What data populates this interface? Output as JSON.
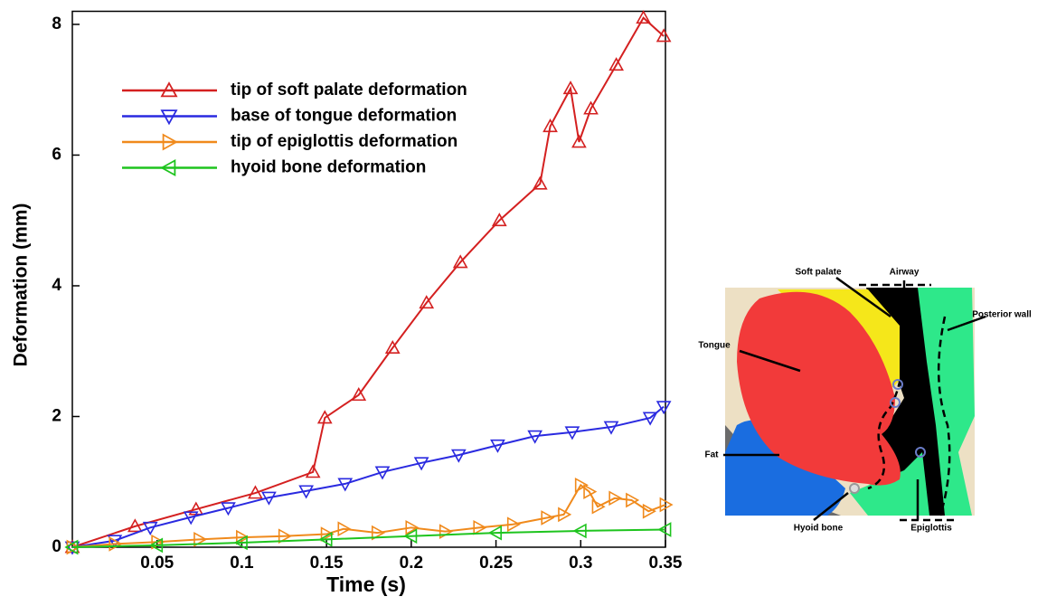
{
  "chart_data": {
    "type": "line",
    "xlabel": "Time (s)",
    "ylabel": "Deformation (mm)",
    "xlim": [
      0,
      0.35
    ],
    "ylim": [
      0,
      8.2
    ],
    "xticks": [
      0.05,
      0.1,
      0.15,
      0.2,
      0.25,
      0.3,
      0.35
    ],
    "yticks": [
      0,
      2,
      4,
      6,
      8
    ],
    "series": [
      {
        "name": "tip of soft palate deformation",
        "color": "#d42020",
        "marker": "up",
        "x": [
          0,
          0.037,
          0.073,
          0.108,
          0.142,
          0.149,
          0.169,
          0.189,
          0.209,
          0.229,
          0.252,
          0.276,
          0.282,
          0.294,
          0.299,
          0.306,
          0.321,
          0.337,
          0.349
        ],
        "values": [
          0,
          0.32,
          0.58,
          0.83,
          1.15,
          1.98,
          2.33,
          3.05,
          3.74,
          4.36,
          5.0,
          5.56,
          6.44,
          7.02,
          6.2,
          6.71,
          7.38,
          8.1,
          7.82
        ]
      },
      {
        "name": "base of tongue deformation",
        "color": "#2a2ae0",
        "marker": "down",
        "x": [
          0,
          0.025,
          0.046,
          0.07,
          0.092,
          0.116,
          0.138,
          0.161,
          0.183,
          0.206,
          0.228,
          0.251,
          0.273,
          0.295,
          0.318,
          0.341,
          0.349
        ],
        "values": [
          0,
          0.1,
          0.3,
          0.46,
          0.6,
          0.76,
          0.86,
          0.97,
          1.15,
          1.29,
          1.41,
          1.56,
          1.7,
          1.76,
          1.84,
          1.98,
          2.15
        ]
      },
      {
        "name": "tip of epiglottis deformation",
        "color": "#f08a1c",
        "marker": "right",
        "x": [
          0,
          0.025,
          0.05,
          0.075,
          0.1,
          0.125,
          0.15,
          0.16,
          0.18,
          0.2,
          0.22,
          0.24,
          0.26,
          0.28,
          0.29,
          0.3,
          0.305,
          0.31,
          0.32,
          0.33,
          0.34,
          0.35
        ],
        "values": [
          0,
          0.05,
          0.08,
          0.12,
          0.15,
          0.17,
          0.2,
          0.28,
          0.22,
          0.3,
          0.24,
          0.3,
          0.35,
          0.45,
          0.5,
          0.95,
          0.85,
          0.62,
          0.75,
          0.72,
          0.55,
          0.65
        ]
      },
      {
        "name": "hyoid bone deformation",
        "color": "#1ec41e",
        "marker": "left",
        "x": [
          0,
          0.05,
          0.1,
          0.15,
          0.2,
          0.25,
          0.3,
          0.35
        ],
        "values": [
          0,
          0.03,
          0.07,
          0.12,
          0.17,
          0.22,
          0.25,
          0.27
        ]
      }
    ]
  },
  "inset": {
    "labels": [
      "Soft palate",
      "Airway",
      "Posterior wall",
      "Tongue",
      "Fat",
      "Hyoid bone",
      "Epiglottis"
    ]
  }
}
